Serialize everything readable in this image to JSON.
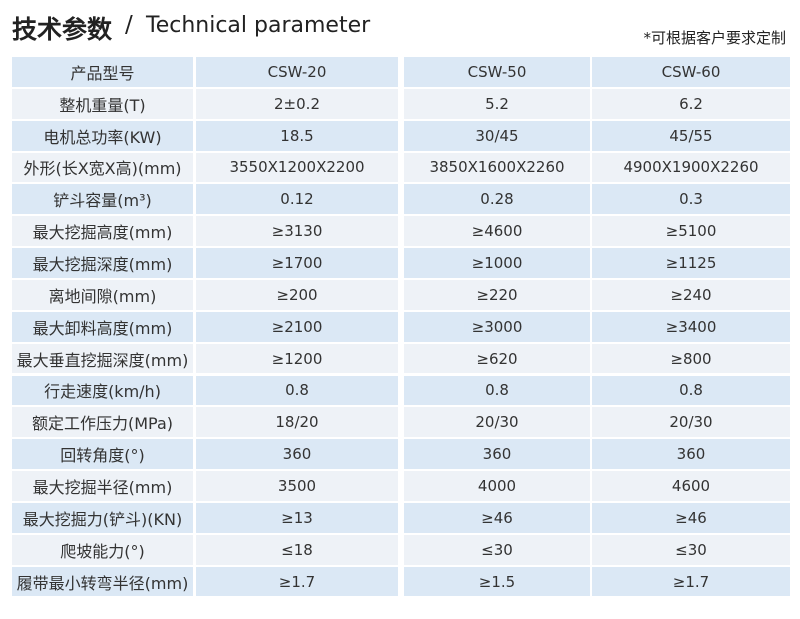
{
  "header": {
    "title_cn": "技术参数",
    "separator": "/",
    "title_en": "Technical parameter",
    "note": "*可根据客户要求定制"
  },
  "table": {
    "rows": [
      [
        "产品型号",
        "CSW-20",
        "CSW-50",
        "CSW-60"
      ],
      [
        "整机重量(T)",
        "2±0.2",
        "5.2",
        "6.2"
      ],
      [
        "电机总功率(KW)",
        "18.5",
        "30/45",
        "45/55"
      ],
      [
        "外形(长X宽X高)(mm)",
        "3550X1200X2200",
        "3850X1600X2260",
        "4900X1900X2260"
      ],
      [
        "铲斗容量(m³)",
        "0.12",
        "0.28",
        "0.3"
      ],
      [
        "最大挖掘高度(mm)",
        "≥3130",
        "≥4600",
        "≥5100"
      ],
      [
        "最大挖掘深度(mm)",
        "≥1700",
        "≥1000",
        "≥1125"
      ],
      [
        "离地间隙(mm)",
        "≥200",
        "≥220",
        "≥240"
      ],
      [
        "最大卸料高度(mm)",
        "≥2100",
        "≥3000",
        "≥3400"
      ],
      [
        "最大垂直挖掘深度(mm)",
        "≥1200",
        "≥620",
        "≥800"
      ],
      [
        "行走速度(km/h)",
        "0.8",
        "0.8",
        "0.8"
      ],
      [
        "额定工作压力(MPa)",
        "18/20",
        "20/30",
        "20/30"
      ],
      [
        "回转角度(°)",
        "360",
        "360",
        "360"
      ],
      [
        "最大挖掘半径(mm)",
        "3500",
        "4000",
        "4600"
      ],
      [
        "最大挖掘力(铲斗)(KN)",
        "≥13",
        "≥46",
        "≥46"
      ],
      [
        "爬坡能力(°)",
        "≤18",
        "≤30",
        "≤30"
      ],
      [
        "履带最小转弯半径(mm)",
        "≥1.7",
        "≥1.5",
        "≥1.7"
      ]
    ]
  }
}
